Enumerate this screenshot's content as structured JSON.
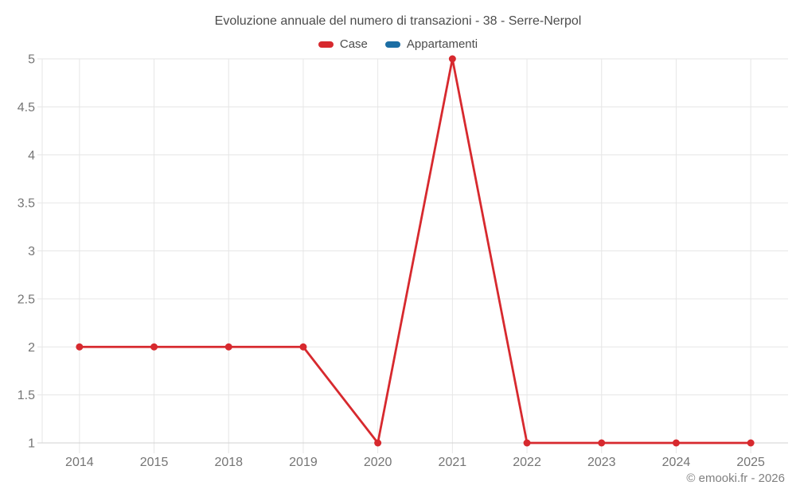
{
  "footer": {
    "copyright": "© emooki.fr - 2026"
  },
  "colors": {
    "grid": "#e6e6e6",
    "axis_line": "#d2d2d2",
    "axis_text": "#757575",
    "title_text": "#4c4c4c",
    "case_red": "#d7292e",
    "appartamenti_blue": "#1c6ea4"
  },
  "chart_data": {
    "type": "line",
    "title": "Evoluzione annuale del numero di transazioni - 38 - Serre-Nerpol",
    "categories": [
      "2014",
      "2015",
      "2018",
      "2019",
      "2020",
      "2021",
      "2022",
      "2023",
      "2024",
      "2025"
    ],
    "series": [
      {
        "name": "Case",
        "color": "#d7292e",
        "values": [
          2,
          2,
          2,
          2,
          1,
          5,
          1,
          1,
          1,
          1
        ]
      },
      {
        "name": "Appartamenti",
        "color": "#1c6ea4",
        "values": [
          null,
          null,
          null,
          null,
          null,
          null,
          null,
          null,
          null,
          null
        ]
      }
    ],
    "xlabel": "",
    "ylabel": "",
    "ylim": [
      1,
      5
    ],
    "y_ticks": [
      1,
      1.5,
      2,
      2.5,
      3,
      3.5,
      4,
      4.5,
      5
    ],
    "grid": true,
    "legend_position": "top",
    "marker": "circle"
  }
}
